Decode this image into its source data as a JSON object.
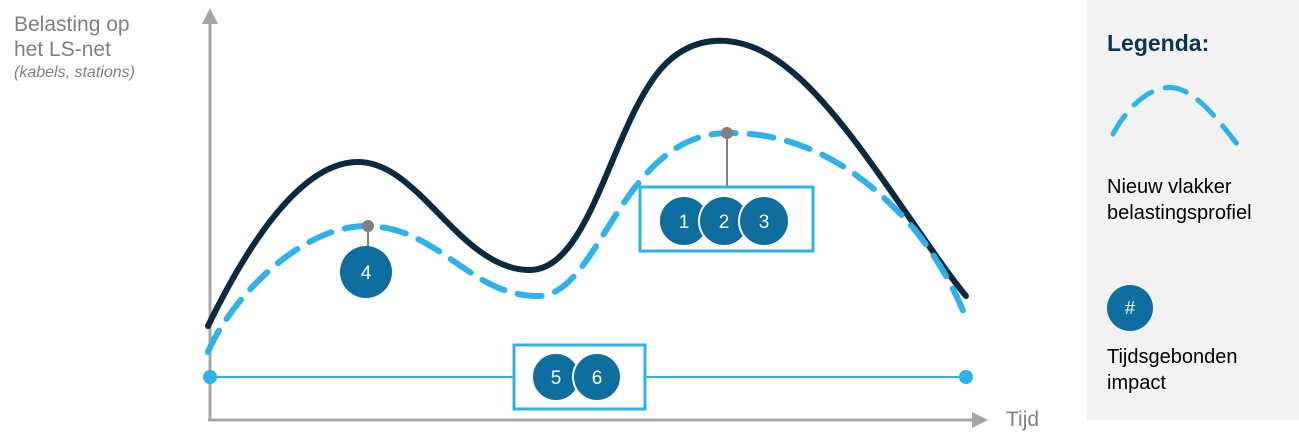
{
  "axes": {
    "y_label_line1": "Belasting op",
    "y_label_line2": "het LS-net",
    "y_label_sub": "(kabels, stations)",
    "x_label": "Tijd"
  },
  "legend": {
    "title": "Legenda:",
    "dashed_line_line1": "Nieuw vlakker",
    "dashed_line_line2": "belastingsprofiel",
    "badge_symbol": "#",
    "badge_line1": "Tijdsgebonden",
    "badge_line2": "impact"
  },
  "impacts": {
    "peak_group": [
      "1",
      "2",
      "3"
    ],
    "small_peak": "4",
    "baseline_group": [
      "5",
      "6"
    ]
  },
  "colors": {
    "original_profile": "#0b2a40",
    "new_profile": "#2bb3ea",
    "badge": "#0f6ea0",
    "axis": "#a6a6a6",
    "marker": "#808080"
  }
}
